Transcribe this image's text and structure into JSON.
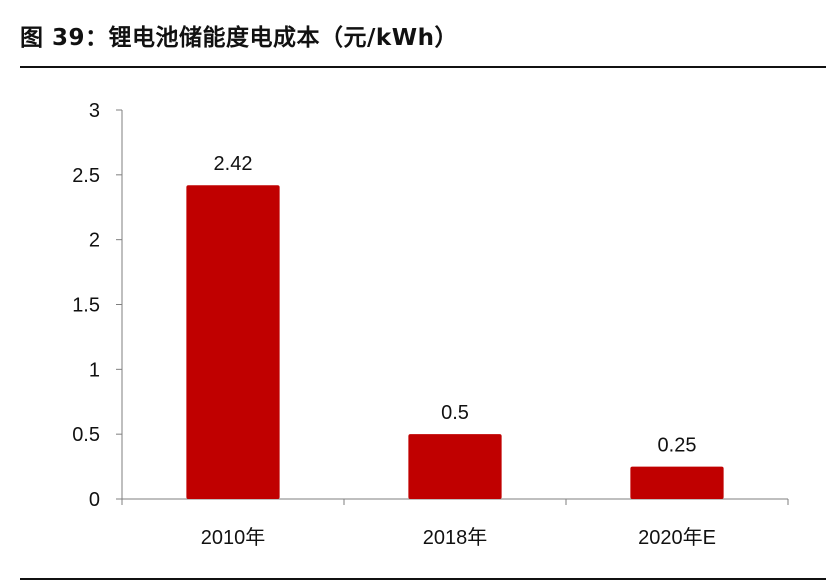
{
  "figure": {
    "title": "图 39：锂电池储能度电成本（元/kWh）"
  },
  "chart_data": {
    "type": "bar",
    "title": "图 39：锂电池储能度电成本（元/kWh）",
    "categories": [
      "2010年",
      "2018年",
      "2020年E"
    ],
    "values": [
      2.42,
      0.5,
      0.25
    ],
    "data_labels": [
      "2.42",
      "0.5",
      "0.25"
    ],
    "y_ticks": [
      "0",
      "0.5",
      "1",
      "1.5",
      "2",
      "2.5",
      "3"
    ],
    "ylim": [
      0,
      3
    ],
    "xlabel": "",
    "ylabel": "",
    "grid": false,
    "legend": "none",
    "bar_color": "#C00000"
  }
}
